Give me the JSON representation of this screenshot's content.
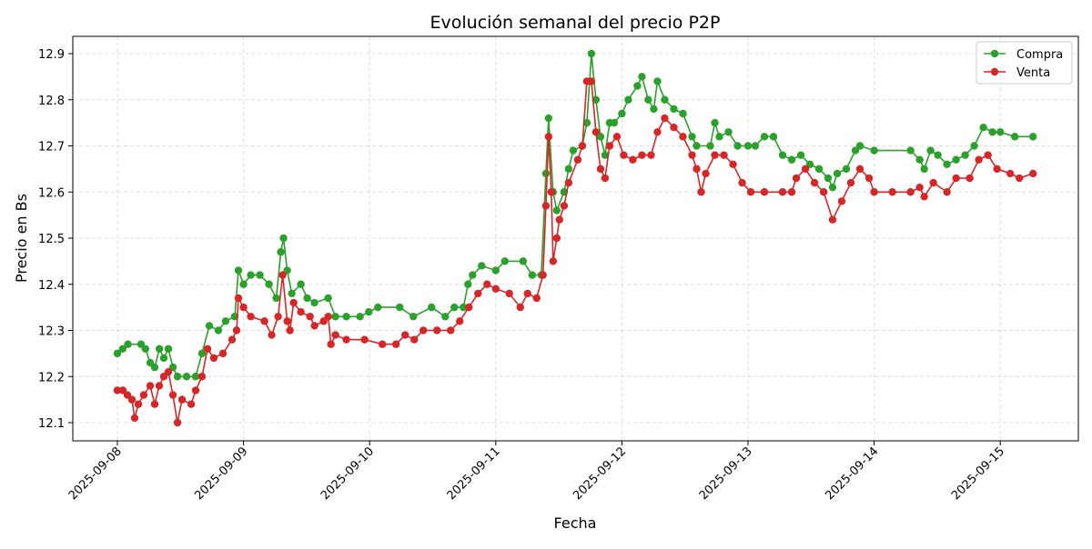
{
  "chart_data": {
    "type": "line",
    "title": "Evolución semanal del precio P2P",
    "xlabel": "Fecha",
    "ylabel": "Precio en Bs",
    "xlim": [
      "2025-09-07 15:15",
      "2025-09-15 15:40"
    ],
    "ylim": [
      12.063,
      12.938
    ],
    "x_ticks": [
      "2025-09-08",
      "2025-09-09",
      "2025-09-10",
      "2025-09-11",
      "2025-09-12",
      "2025-09-13",
      "2025-09-14",
      "2025-09-15"
    ],
    "y_ticks": [
      "12.1",
      "12.2",
      "12.3",
      "12.4",
      "12.5",
      "12.6",
      "12.7",
      "12.8",
      "12.9"
    ],
    "grid": true,
    "legend_position": "top-right",
    "series": [
      {
        "name": "Compra",
        "color": "#2ca02c",
        "marker": "circle",
        "points": [
          [
            "2025-09-08 00:00",
            12.25
          ],
          [
            "2025-09-08 01:00",
            12.26
          ],
          [
            "2025-09-08 02:00",
            12.27
          ],
          [
            "2025-09-08 04:30",
            12.27
          ],
          [
            "2025-09-08 05:20",
            12.26
          ],
          [
            "2025-09-08 06:15",
            12.23
          ],
          [
            "2025-09-08 07:06",
            12.22
          ],
          [
            "2025-09-08 08:00",
            12.26
          ],
          [
            "2025-09-08 08:50",
            12.24
          ],
          [
            "2025-09-08 09:42",
            12.26
          ],
          [
            "2025-09-08 10:34",
            12.22
          ],
          [
            "2025-09-08 11:26",
            12.2
          ],
          [
            "2025-09-08 13:10",
            12.2
          ],
          [
            "2025-09-08 14:53",
            12.2
          ],
          [
            "2025-09-08 16:06",
            12.25
          ],
          [
            "2025-09-08 17:29",
            12.31
          ],
          [
            "2025-09-08 19:13",
            12.3
          ],
          [
            "2025-09-08 20:36",
            12.32
          ],
          [
            "2025-09-08 22:20",
            12.33
          ],
          [
            "2025-09-08 23:02",
            12.43
          ],
          [
            "2025-09-09 00:00",
            12.4
          ],
          [
            "2025-09-09 01:23",
            12.42
          ],
          [
            "2025-09-09 03:07",
            12.42
          ],
          [
            "2025-09-09 04:51",
            12.4
          ],
          [
            "2025-09-09 06:14",
            12.37
          ],
          [
            "2025-09-09 07:06",
            12.47
          ],
          [
            "2025-09-09 07:37",
            12.5
          ],
          [
            "2025-09-09 08:19",
            12.43
          ],
          [
            "2025-09-09 09:11",
            12.38
          ],
          [
            "2025-09-09 10:55",
            12.4
          ],
          [
            "2025-09-09 12:07",
            12.37
          ],
          [
            "2025-09-09 13:30",
            12.36
          ],
          [
            "2025-09-09 16:06",
            12.37
          ],
          [
            "2025-09-09 17:29",
            12.33
          ],
          [
            "2025-09-09 19:34",
            12.33
          ],
          [
            "2025-09-09 22:10",
            12.33
          ],
          [
            "2025-09-09 23:50",
            12.34
          ],
          [
            "2025-09-10 01:34",
            12.35
          ],
          [
            "2025-09-10 05:43",
            12.35
          ],
          [
            "2025-09-10 08:19",
            12.33
          ],
          [
            "2025-09-10 11:47",
            12.35
          ],
          [
            "2025-09-10 14:23",
            12.33
          ],
          [
            "2025-09-10 16:07",
            12.35
          ],
          [
            "2025-09-10 17:51",
            12.35
          ],
          [
            "2025-09-10 18:43",
            12.4
          ],
          [
            "2025-09-10 19:35",
            12.42
          ],
          [
            "2025-09-10 21:19",
            12.44
          ],
          [
            "2025-09-11 00:00",
            12.43
          ],
          [
            "2025-09-11 01:44",
            12.45
          ],
          [
            "2025-09-11 05:12",
            12.45
          ],
          [
            "2025-09-11 06:56",
            12.42
          ],
          [
            "2025-09-11 08:40",
            12.42
          ],
          [
            "2025-09-11 09:32",
            12.64
          ],
          [
            "2025-09-11 10:03",
            12.76
          ],
          [
            "2025-09-11 10:55",
            12.6
          ],
          [
            "2025-09-11 11:36",
            12.56
          ],
          [
            "2025-09-11 13:00",
            12.6
          ],
          [
            "2025-09-11 13:52",
            12.65
          ],
          [
            "2025-09-11 14:44",
            12.69
          ],
          [
            "2025-09-11 16:28",
            12.7
          ],
          [
            "2025-09-11 17:20",
            12.75
          ],
          [
            "2025-09-11 18:12",
            12.9
          ],
          [
            "2025-09-11 19:04",
            12.8
          ],
          [
            "2025-09-11 19:56",
            12.72
          ],
          [
            "2025-09-11 20:48",
            12.68
          ],
          [
            "2025-09-11 21:40",
            12.75
          ],
          [
            "2025-09-11 22:32",
            12.75
          ],
          [
            "2025-09-12 00:00",
            12.77
          ],
          [
            "2025-09-12 01:13",
            12.8
          ],
          [
            "2025-09-12 02:57",
            12.83
          ],
          [
            "2025-09-12 03:49",
            12.85
          ],
          [
            "2025-09-12 05:01",
            12.8
          ],
          [
            "2025-09-12 06:04",
            12.78
          ],
          [
            "2025-09-12 06:46",
            12.84
          ],
          [
            "2025-09-12 08:09",
            12.8
          ],
          [
            "2025-09-12 09:53",
            12.78
          ],
          [
            "2025-09-12 11:37",
            12.77
          ],
          [
            "2025-09-12 13:21",
            12.72
          ],
          [
            "2025-09-12 14:13",
            12.7
          ],
          [
            "2025-09-12 16:49",
            12.7
          ],
          [
            "2025-09-12 17:41",
            12.75
          ],
          [
            "2025-09-12 18:33",
            12.72
          ],
          [
            "2025-09-12 20:17",
            12.73
          ],
          [
            "2025-09-12 22:01",
            12.7
          ],
          [
            "2025-09-13 00:00",
            12.7
          ],
          [
            "2025-09-13 01:23",
            12.7
          ],
          [
            "2025-09-13 03:07",
            12.72
          ],
          [
            "2025-09-13 04:51",
            12.72
          ],
          [
            "2025-09-13 06:35",
            12.68
          ],
          [
            "2025-09-13 08:19",
            12.67
          ],
          [
            "2025-09-13 10:03",
            12.68
          ],
          [
            "2025-09-13 11:47",
            12.66
          ],
          [
            "2025-09-13 13:31",
            12.65
          ],
          [
            "2025-09-13 15:14",
            12.63
          ],
          [
            "2025-09-13 16:06",
            12.61
          ],
          [
            "2025-09-13 16:58",
            12.64
          ],
          [
            "2025-09-13 18:42",
            12.65
          ],
          [
            "2025-09-13 20:26",
            12.69
          ],
          [
            "2025-09-13 21:18",
            12.7
          ],
          [
            "2025-09-14 00:00",
            12.69
          ],
          [
            "2025-09-14 06:56",
            12.69
          ],
          [
            "2025-09-14 08:40",
            12.67
          ],
          [
            "2025-09-14 09:32",
            12.65
          ],
          [
            "2025-09-14 10:44",
            12.69
          ],
          [
            "2025-09-14 12:07",
            12.68
          ],
          [
            "2025-09-14 13:51",
            12.66
          ],
          [
            "2025-09-14 15:35",
            12.67
          ],
          [
            "2025-09-14 17:19",
            12.68
          ],
          [
            "2025-09-14 19:03",
            12.7
          ],
          [
            "2025-09-14 20:47",
            12.74
          ],
          [
            "2025-09-14 22:31",
            12.73
          ],
          [
            "2025-09-15 00:00",
            12.73
          ],
          [
            "2025-09-15 02:46",
            12.72
          ],
          [
            "2025-09-15 06:14",
            12.72
          ]
        ]
      },
      {
        "name": "Venta",
        "color": "#d62728",
        "marker": "circle",
        "points": [
          [
            "2025-09-08 00:00",
            12.17
          ],
          [
            "2025-09-08 01:02",
            12.17
          ],
          [
            "2025-09-08 01:54",
            12.16
          ],
          [
            "2025-09-08 02:46",
            12.15
          ],
          [
            "2025-09-08 03:17",
            12.11
          ],
          [
            "2025-09-08 03:59",
            12.14
          ],
          [
            "2025-09-08 05:01",
            12.16
          ],
          [
            "2025-09-08 06:14",
            12.18
          ],
          [
            "2025-09-08 07:06",
            12.14
          ],
          [
            "2025-09-08 07:58",
            12.18
          ],
          [
            "2025-09-08 08:50",
            12.2
          ],
          [
            "2025-09-08 09:42",
            12.21
          ],
          [
            "2025-09-08 10:34",
            12.16
          ],
          [
            "2025-09-08 11:26",
            12.1
          ],
          [
            "2025-09-08 12:18",
            12.15
          ],
          [
            "2025-09-08 14:02",
            12.14
          ],
          [
            "2025-09-08 14:54",
            12.17
          ],
          [
            "2025-09-08 16:06",
            12.2
          ],
          [
            "2025-09-08 17:09",
            12.26
          ],
          [
            "2025-09-08 18:21",
            12.24
          ],
          [
            "2025-09-08 20:05",
            12.25
          ],
          [
            "2025-09-08 21:49",
            12.28
          ],
          [
            "2025-09-08 22:41",
            12.3
          ],
          [
            "2025-09-08 23:02",
            12.37
          ],
          [
            "2025-09-09 00:00",
            12.35
          ],
          [
            "2025-09-09 01:23",
            12.33
          ],
          [
            "2025-09-09 03:59",
            12.32
          ],
          [
            "2025-09-09 05:22",
            12.29
          ],
          [
            "2025-09-09 06:35",
            12.33
          ],
          [
            "2025-09-09 07:27",
            12.42
          ],
          [
            "2025-09-09 08:19",
            12.32
          ],
          [
            "2025-09-09 08:50",
            12.3
          ],
          [
            "2025-09-09 09:32",
            12.36
          ],
          [
            "2025-09-09 10:55",
            12.34
          ],
          [
            "2025-09-09 12:39",
            12.33
          ],
          [
            "2025-09-09 13:31",
            12.31
          ],
          [
            "2025-09-09 15:15",
            12.32
          ],
          [
            "2025-09-09 16:07",
            12.33
          ],
          [
            "2025-09-09 16:38",
            12.27
          ],
          [
            "2025-09-09 17:30",
            12.29
          ],
          [
            "2025-09-09 19:34",
            12.28
          ],
          [
            "2025-09-09 23:02",
            12.28
          ],
          [
            "2025-09-10 02:25",
            12.27
          ],
          [
            "2025-09-10 05:01",
            12.27
          ],
          [
            "2025-09-10 06:45",
            12.29
          ],
          [
            "2025-09-10 08:29",
            12.28
          ],
          [
            "2025-09-10 10:13",
            12.3
          ],
          [
            "2025-09-10 12:49",
            12.3
          ],
          [
            "2025-09-10 15:25",
            12.3
          ],
          [
            "2025-09-10 17:09",
            12.32
          ],
          [
            "2025-09-10 18:53",
            12.35
          ],
          [
            "2025-09-10 20:37",
            12.38
          ],
          [
            "2025-09-10 22:21",
            12.4
          ],
          [
            "2025-09-11 00:00",
            12.39
          ],
          [
            "2025-09-11 02:35",
            12.38
          ],
          [
            "2025-09-11 04:40",
            12.35
          ],
          [
            "2025-09-11 06:03",
            12.38
          ],
          [
            "2025-09-11 07:47",
            12.37
          ],
          [
            "2025-09-11 08:59",
            12.42
          ],
          [
            "2025-09-11 09:32",
            12.57
          ],
          [
            "2025-09-11 10:03",
            12.72
          ],
          [
            "2025-09-11 10:34",
            12.6
          ],
          [
            "2025-09-11 10:55",
            12.45
          ],
          [
            "2025-09-11 11:36",
            12.5
          ],
          [
            "2025-09-11 12:07",
            12.54
          ],
          [
            "2025-09-11 13:00",
            12.57
          ],
          [
            "2025-09-11 13:52",
            12.62
          ],
          [
            "2025-09-11 15:36",
            12.67
          ],
          [
            "2025-09-11 16:28",
            12.7
          ],
          [
            "2025-09-11 17:20",
            12.84
          ],
          [
            "2025-09-11 18:12",
            12.84
          ],
          [
            "2025-09-11 19:04",
            12.73
          ],
          [
            "2025-09-11 19:56",
            12.65
          ],
          [
            "2025-09-11 20:48",
            12.63
          ],
          [
            "2025-09-11 21:40",
            12.7
          ],
          [
            "2025-09-11 23:03",
            12.72
          ],
          [
            "2025-09-12 00:21",
            12.68
          ],
          [
            "2025-09-12 02:05",
            12.67
          ],
          [
            "2025-09-12 03:49",
            12.68
          ],
          [
            "2025-09-12 05:33",
            12.68
          ],
          [
            "2025-09-12 06:46",
            12.73
          ],
          [
            "2025-09-12 08:09",
            12.76
          ],
          [
            "2025-09-12 09:53",
            12.74
          ],
          [
            "2025-09-12 11:37",
            12.72
          ],
          [
            "2025-09-12 13:21",
            12.68
          ],
          [
            "2025-09-12 14:13",
            12.65
          ],
          [
            "2025-09-12 15:05",
            12.6
          ],
          [
            "2025-09-12 15:57",
            12.64
          ],
          [
            "2025-09-12 17:41",
            12.68
          ],
          [
            "2025-09-12 19:25",
            12.68
          ],
          [
            "2025-09-12 21:09",
            12.66
          ],
          [
            "2025-09-12 22:53",
            12.62
          ],
          [
            "2025-09-13 00:31",
            12.6
          ],
          [
            "2025-09-13 03:07",
            12.6
          ],
          [
            "2025-09-13 06:35",
            12.6
          ],
          [
            "2025-09-13 08:19",
            12.6
          ],
          [
            "2025-09-13 09:11",
            12.63
          ],
          [
            "2025-09-13 10:55",
            12.65
          ],
          [
            "2025-09-13 12:39",
            12.62
          ],
          [
            "2025-09-13 14:23",
            12.6
          ],
          [
            "2025-09-13 16:06",
            12.54
          ],
          [
            "2025-09-13 17:50",
            12.58
          ],
          [
            "2025-09-13 19:34",
            12.62
          ],
          [
            "2025-09-13 21:18",
            12.65
          ],
          [
            "2025-09-13 23:02",
            12.63
          ],
          [
            "2025-09-14 00:00",
            12.6
          ],
          [
            "2025-09-14 03:28",
            12.6
          ],
          [
            "2025-09-14 06:56",
            12.6
          ],
          [
            "2025-09-14 08:40",
            12.61
          ],
          [
            "2025-09-14 09:32",
            12.59
          ],
          [
            "2025-09-14 11:16",
            12.62
          ],
          [
            "2025-09-14 13:52",
            12.6
          ],
          [
            "2025-09-14 15:36",
            12.63
          ],
          [
            "2025-09-14 18:11",
            12.63
          ],
          [
            "2025-09-14 19:55",
            12.67
          ],
          [
            "2025-09-14 21:39",
            12.68
          ],
          [
            "2025-09-14 23:23",
            12.65
          ],
          [
            "2025-09-15 01:54",
            12.64
          ],
          [
            "2025-09-15 03:38",
            12.63
          ],
          [
            "2025-09-15 06:14",
            12.64
          ]
        ]
      }
    ]
  }
}
